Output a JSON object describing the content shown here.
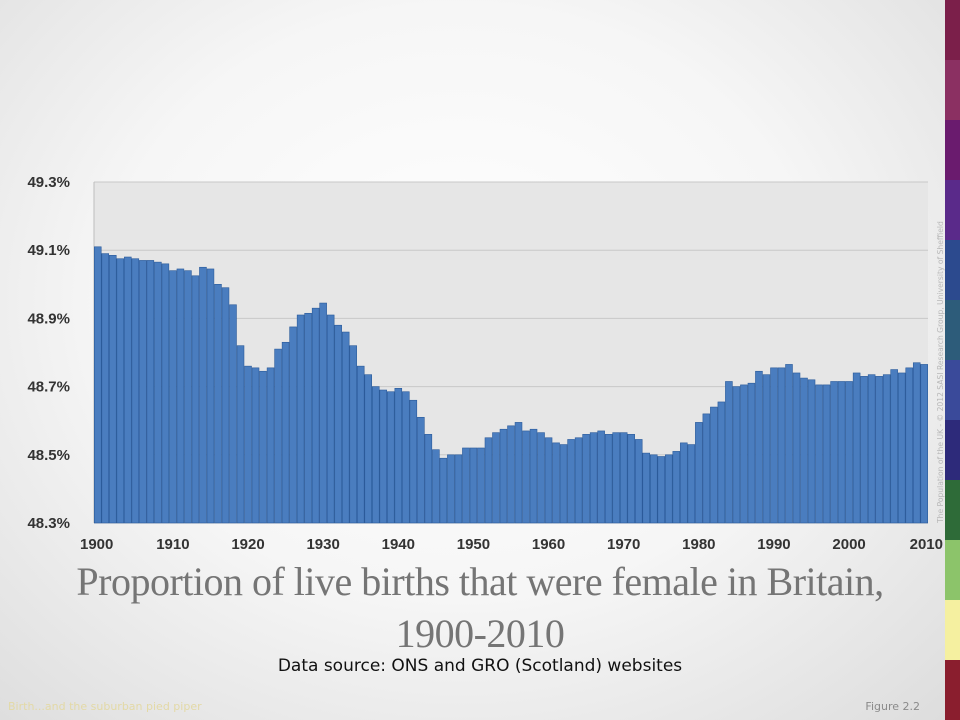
{
  "slide": {
    "title": "Proportion of live births that were female in Britain, 1900-2010",
    "subtitle": "Data source: ONS and GRO (Scotland) websites",
    "footer_left": "Birth...and the suburban pied piper",
    "footer_right": "Figure 2.2",
    "credit": "The Population of the UK - © 2012 SASI Research Group, University of Sheffield"
  },
  "colors": {
    "bar_fill": "#4a7dbf",
    "bar_stroke": "#2a5a9a",
    "plot_background": "#e6e6e6",
    "gridline": "#c8c8c8",
    "title_text": "#757575",
    "sidebar_bands": [
      "#7b1f4a",
      "#8b3062",
      "#6a1b6e",
      "#5a2a8a",
      "#2c4a8e",
      "#2d5c7a",
      "#3a4a9a",
      "#2d2a7a",
      "#2e6b38",
      "#8cc46a",
      "#f5f0a0",
      "#8a1e2e"
    ]
  },
  "chart_data": {
    "type": "bar",
    "title": "",
    "xlabel": "",
    "ylabel": "",
    "ylim": [
      48.3,
      49.3
    ],
    "yticks": [
      "48.3%",
      "48.5%",
      "48.7%",
      "48.9%",
      "49.1%",
      "49.3%"
    ],
    "ytick_values": [
      48.3,
      48.5,
      48.7,
      48.9,
      49.1,
      49.3
    ],
    "xticks": [
      "1900",
      "1910",
      "1920",
      "1930",
      "1940",
      "1950",
      "1960",
      "1970",
      "1980",
      "1990",
      "2000",
      "2010"
    ],
    "grid": true,
    "legend": "none",
    "categories": [
      1900,
      1901,
      1902,
      1903,
      1904,
      1905,
      1906,
      1907,
      1908,
      1909,
      1910,
      1911,
      1912,
      1913,
      1914,
      1915,
      1916,
      1917,
      1918,
      1919,
      1920,
      1921,
      1922,
      1923,
      1924,
      1925,
      1926,
      1927,
      1928,
      1929,
      1930,
      1931,
      1932,
      1933,
      1934,
      1935,
      1936,
      1937,
      1938,
      1939,
      1940,
      1941,
      1942,
      1943,
      1944,
      1945,
      1946,
      1947,
      1948,
      1949,
      1950,
      1951,
      1952,
      1953,
      1954,
      1955,
      1956,
      1957,
      1958,
      1959,
      1960,
      1961,
      1962,
      1963,
      1964,
      1965,
      1966,
      1967,
      1968,
      1969,
      1970,
      1971,
      1972,
      1973,
      1974,
      1975,
      1976,
      1977,
      1978,
      1979,
      1980,
      1981,
      1982,
      1983,
      1984,
      1985,
      1986,
      1987,
      1988,
      1989,
      1990,
      1991,
      1992,
      1993,
      1994,
      1995,
      1996,
      1997,
      1998,
      1999,
      2000,
      2001,
      2002,
      2003,
      2004,
      2005,
      2006,
      2007,
      2008,
      2009,
      2010
    ],
    "values": [
      49.11,
      49.09,
      49.085,
      49.075,
      49.08,
      49.075,
      49.07,
      49.07,
      49.065,
      49.06,
      49.04,
      49.045,
      49.04,
      49.025,
      49.05,
      49.045,
      49.0,
      48.99,
      48.94,
      48.82,
      48.76,
      48.755,
      48.745,
      48.755,
      48.81,
      48.83,
      48.875,
      48.91,
      48.915,
      48.93,
      48.945,
      48.91,
      48.88,
      48.86,
      48.82,
      48.76,
      48.735,
      48.7,
      48.69,
      48.685,
      48.695,
      48.685,
      48.66,
      48.61,
      48.56,
      48.515,
      48.49,
      48.5,
      48.5,
      48.52,
      48.52,
      48.52,
      48.55,
      48.565,
      48.575,
      48.585,
      48.595,
      48.57,
      48.575,
      48.565,
      48.55,
      48.535,
      48.53,
      48.545,
      48.55,
      48.56,
      48.565,
      48.57,
      48.56,
      48.565,
      48.565,
      48.56,
      48.545,
      48.505,
      48.5,
      48.495,
      48.5,
      48.51,
      48.535,
      48.53,
      48.595,
      48.62,
      48.64,
      48.655,
      48.715,
      48.7,
      48.705,
      48.71,
      48.745,
      48.735,
      48.755,
      48.755,
      48.765,
      48.74,
      48.725,
      48.72,
      48.705,
      48.705,
      48.715,
      48.715,
      48.715,
      48.74,
      48.73,
      48.735,
      48.73,
      48.735,
      48.75,
      48.74,
      48.755,
      48.77,
      48.765
    ]
  }
}
